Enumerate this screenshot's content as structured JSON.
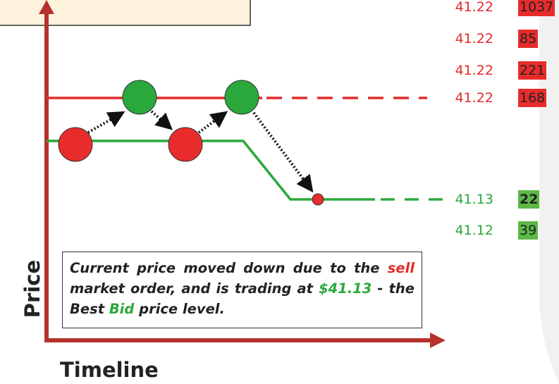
{
  "axes": {
    "y_label": "Price",
    "x_label": "Timeline"
  },
  "order_book": {
    "asks": [
      {
        "price": "41.22",
        "size": "1037"
      },
      {
        "price": "41.22",
        "size": "85"
      },
      {
        "price": "41.22",
        "size": "221"
      },
      {
        "price": "41.22",
        "size": "168"
      }
    ],
    "bids": [
      {
        "price": "41.13",
        "size": "22"
      },
      {
        "price": "41.12",
        "size": "39"
      }
    ]
  },
  "annotation": {
    "parts": [
      "Current price moved down due to the ",
      "sell",
      " market order, and is trading at ",
      "$41.13",
      " - the Best ",
      "Bid",
      " price level."
    ]
  }
}
